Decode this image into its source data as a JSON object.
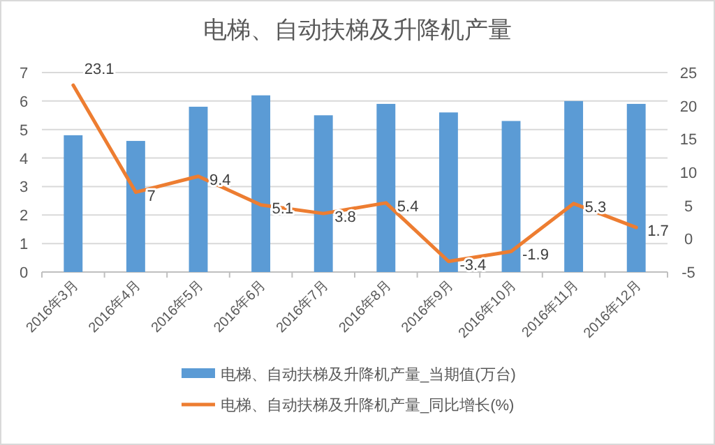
{
  "chart_data": {
    "type": "bar",
    "title": "电梯、自动扶梯及升降机产量",
    "categories": [
      "2016年3月",
      "2016年4月",
      "2016年5月",
      "2016年6月",
      "2016年7月",
      "2016年8月",
      "2016年9月",
      "2016年10月",
      "2016年11月",
      "2016年12月"
    ],
    "series": [
      {
        "name": "电梯、自动扶梯及升降机产量_当期值(万台)",
        "color": "#5b9bd5",
        "values": [
          4.8,
          4.6,
          5.8,
          6.2,
          5.5,
          5.9,
          5.6,
          5.3,
          6.0,
          5.9
        ]
      },
      {
        "name": "电梯、自动扶梯及升降机产量_同比增长(%)",
        "type": "line",
        "axis": "y2",
        "color": "#ed7d31",
        "values": [
          23.1,
          7,
          9.4,
          5.1,
          3.8,
          5.4,
          -3.4,
          -1.9,
          5.3,
          1.7
        ],
        "value_labels": [
          "23.1",
          "7",
          "9.4",
          "5.1",
          "3.8",
          "5.4",
          "-3.4",
          "-1.9",
          "5.3",
          "1.7"
        ]
      }
    ],
    "ylim": [
      0,
      7
    ],
    "yticks": [
      0,
      1,
      2,
      3,
      4,
      5,
      6,
      7
    ],
    "y2lim": [
      -5,
      25
    ],
    "y2ticks": [
      -5,
      0,
      5,
      10,
      15,
      20,
      25
    ],
    "grid": "y",
    "legend": "bottom",
    "marker": "none",
    "line_style": "solid"
  }
}
